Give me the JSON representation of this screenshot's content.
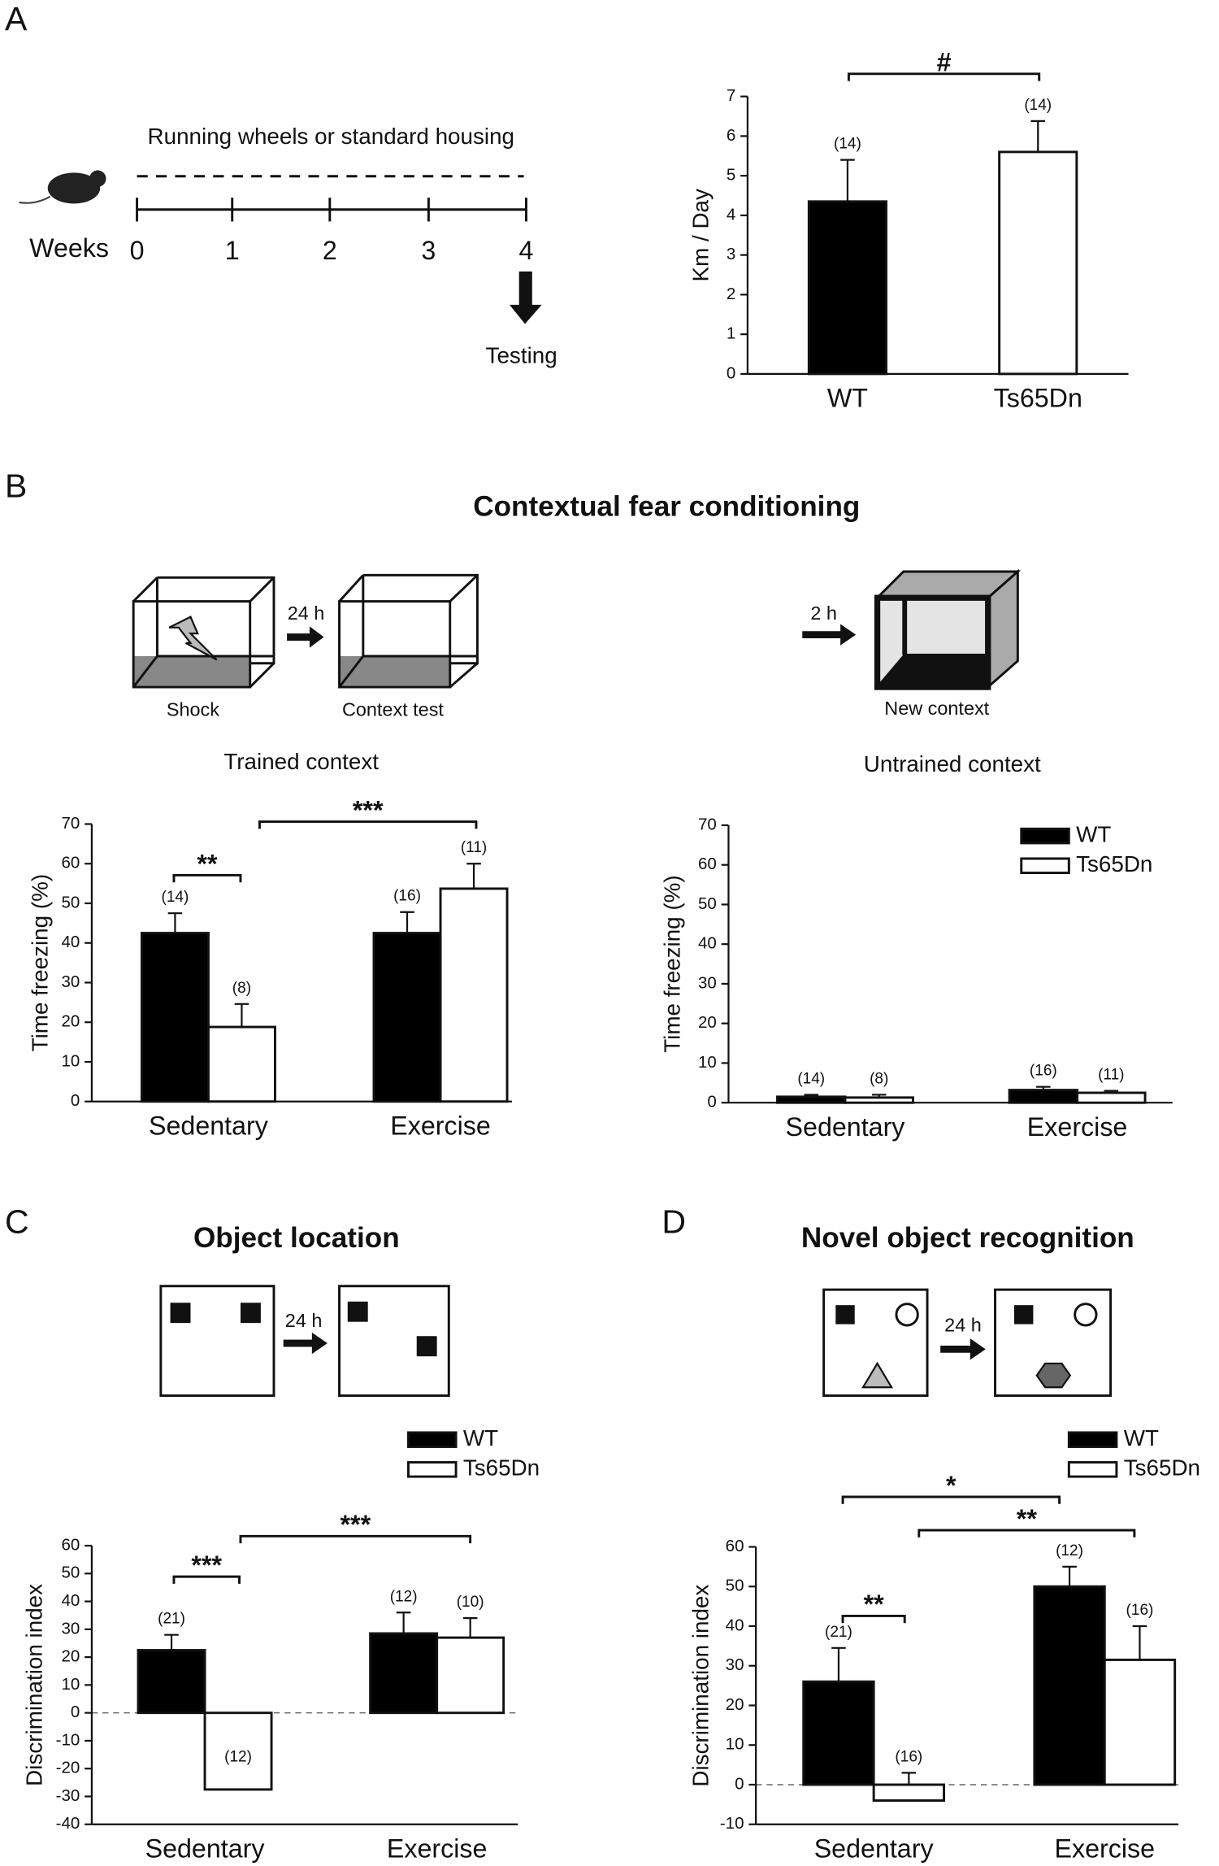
{
  "figure": {
    "panels": [
      "A",
      "B",
      "C",
      "D"
    ],
    "timeline": {
      "label": "Running wheels or standard housing",
      "axis_label": "Weeks",
      "ticks": [
        "0",
        "1",
        "2",
        "3",
        "4"
      ],
      "note": "Testing"
    },
    "section_b_title": "Contextual fear conditioning",
    "fear_diagram": {
      "delay_1": "24 h",
      "box_1": "Shock",
      "box_2": "Context test",
      "delay_2": "2 h",
      "box_3": "New context"
    },
    "delay_c": "24 h",
    "delay_d": "24 h"
  },
  "chart_data": [
    {
      "type": "bar",
      "ylabel": "Km / Day",
      "categories": [
        "WT",
        "Ts65Dn"
      ],
      "series": [
        {
          "colors": [
            "#000000",
            "#ffffff"
          ],
          "values": [
            4.35,
            5.6
          ],
          "errors": [
            1.05,
            0.78
          ],
          "labels": [
            "(14)",
            "(14)"
          ]
        }
      ],
      "ylim": [
        0,
        7
      ],
      "yticks": [
        0,
        1,
        2,
        3,
        4,
        5,
        6,
        7
      ],
      "annotations": [
        "#"
      ]
    },
    {
      "type": "bar",
      "title": "Trained context",
      "ylabel": "Time freezing (%)",
      "categories": [
        "Sedentary",
        "Exercise"
      ],
      "series": [
        {
          "color": "#000000",
          "values": [
            42.5,
            42.5
          ],
          "errors": [
            5,
            5.3
          ],
          "labels": [
            "(14)",
            "(16)"
          ]
        },
        {
          "color": "#ffffff",
          "values": [
            18.8,
            53.7
          ],
          "errors": [
            5.8,
            6.3
          ],
          "labels": [
            "(8)",
            "(11)"
          ]
        }
      ],
      "ylim": [
        0,
        70
      ],
      "yticks": [
        0,
        10,
        20,
        30,
        40,
        50,
        60,
        70
      ],
      "annotations": [
        "**",
        "***"
      ]
    },
    {
      "type": "bar",
      "title": "Untrained context",
      "ylabel": "Time freezing (%)",
      "categories": [
        "Sedentary",
        "Exercise"
      ],
      "series": [
        {
          "name": "WT",
          "color": "#000000",
          "values": [
            1.5,
            3.2
          ],
          "errors": [
            0.5,
            0.8
          ],
          "labels": [
            "(14)",
            "(16)"
          ]
        },
        {
          "name": "Ts65Dn",
          "color": "#ffffff",
          "values": [
            1.3,
            2.5
          ],
          "errors": [
            0.7,
            0.5
          ],
          "labels": [
            "(8)",
            "(11)"
          ]
        }
      ],
      "ylim": [
        0,
        70
      ],
      "yticks": [
        0,
        10,
        20,
        30,
        40,
        50,
        60,
        70
      ],
      "legend": "upper right"
    },
    {
      "type": "bar",
      "title": "Object location",
      "ylabel": "Discrimination index",
      "categories": [
        "Sedentary",
        "Exercise"
      ],
      "series": [
        {
          "name": "WT",
          "color": "#000000",
          "values": [
            22.5,
            28.5
          ],
          "errors": [
            5.5,
            7.5
          ],
          "labels": [
            "(21)",
            "(12)"
          ]
        },
        {
          "name": "Ts65Dn",
          "color": "#ffffff",
          "values": [
            -27.5,
            27
          ],
          "errors": [
            6,
            7
          ],
          "labels": [
            "(12)",
            "(10)"
          ]
        }
      ],
      "ylim": [
        -40,
        60
      ],
      "yticks": [
        -40,
        -30,
        -20,
        -10,
        0,
        10,
        20,
        30,
        40,
        50,
        60
      ],
      "zero_line": true,
      "legend": "upper right",
      "annotations": [
        "***",
        "***"
      ]
    },
    {
      "type": "bar",
      "title": "Novel object recognition",
      "ylabel": "Discrimination index",
      "categories": [
        "Sedentary",
        "Exercise"
      ],
      "series": [
        {
          "name": "WT",
          "color": "#000000",
          "values": [
            26,
            50
          ],
          "errors": [
            8.5,
            5
          ],
          "labels": [
            "(21)",
            "(12)"
          ]
        },
        {
          "name": "Ts65Dn",
          "color": "#ffffff",
          "values": [
            -4,
            31.5
          ],
          "errors": [
            7,
            8.5
          ],
          "labels": [
            "(16)",
            "(16)"
          ]
        }
      ],
      "ylim": [
        -10,
        60
      ],
      "yticks": [
        -10,
        0,
        10,
        20,
        30,
        40,
        50,
        60
      ],
      "zero_line": true,
      "legend": "upper right",
      "annotations": [
        "*",
        "**",
        "**"
      ]
    }
  ]
}
